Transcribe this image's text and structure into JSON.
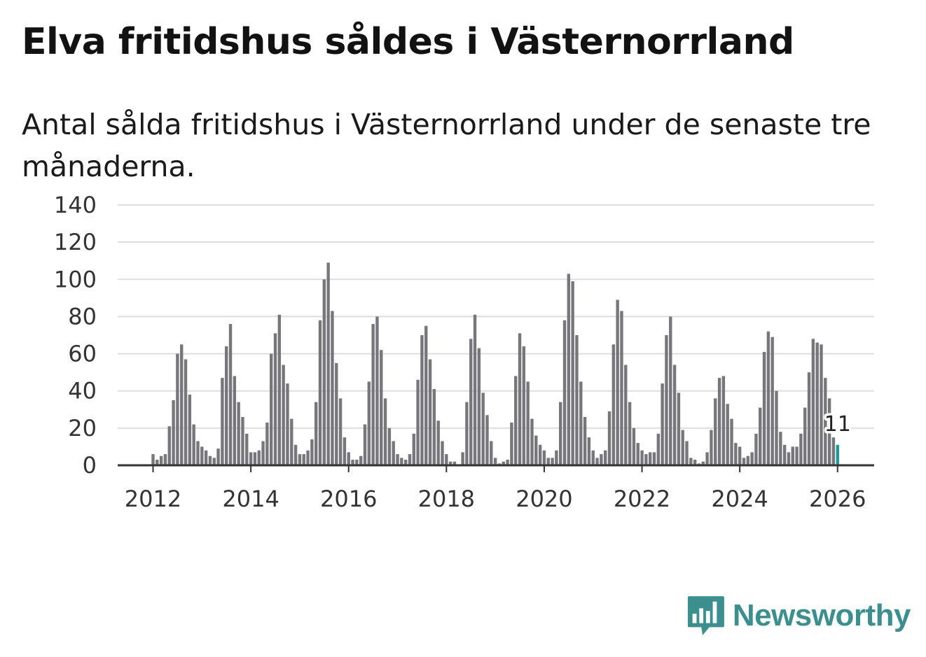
{
  "title": "Elva fritidshus såldes i Västernorrland",
  "subtitle": "Antal sålda fritidshus i Västernorrland under de senaste tre månaderna.",
  "brand": {
    "name": "Newsworthy",
    "color": "#3b8f8e"
  },
  "colors": {
    "bar": "#77767b",
    "highlight": "#1b9a98",
    "grid": "#dddddd",
    "axis": "#333333"
  },
  "chart_data": {
    "type": "bar",
    "title": "Elva fritidshus såldes i Västernorrland",
    "xlabel": "",
    "ylabel": "",
    "ylim": [
      0,
      140
    ],
    "yticks": [
      0,
      20,
      40,
      60,
      80,
      100,
      120,
      140
    ],
    "xticks": [
      "2012",
      "2014",
      "2016",
      "2018",
      "2020",
      "2022",
      "2024",
      "2026"
    ],
    "start": "2012-01",
    "grid": true,
    "series": [
      {
        "name": "Antal sålda fritidshus",
        "values": [
          6,
          3,
          5,
          6,
          21,
          35,
          60,
          65,
          57,
          38,
          22,
          13,
          10,
          8,
          5,
          4,
          9,
          47,
          64,
          76,
          48,
          34,
          26,
          17,
          7,
          7,
          8,
          13,
          23,
          60,
          71,
          81,
          54,
          44,
          25,
          11,
          6,
          6,
          8,
          14,
          34,
          78,
          100,
          109,
          83,
          55,
          36,
          15,
          7,
          3,
          3,
          5,
          22,
          45,
          76,
          80,
          62,
          36,
          20,
          13,
          6,
          4,
          3,
          6,
          17,
          46,
          70,
          75,
          57,
          41,
          24,
          13,
          6,
          2,
          2,
          0,
          7,
          34,
          68,
          81,
          63,
          39,
          27,
          13,
          4,
          1,
          2,
          3,
          23,
          48,
          71,
          64,
          45,
          25,
          16,
          11,
          8,
          4,
          4,
          8,
          34,
          78,
          103,
          99,
          70,
          45,
          26,
          15,
          8,
          4,
          6,
          8,
          29,
          65,
          89,
          83,
          54,
          34,
          20,
          12,
          8,
          6,
          7,
          7,
          17,
          44,
          70,
          80,
          54,
          39,
          19,
          13,
          4,
          3,
          1,
          2,
          7,
          19,
          36,
          47,
          48,
          33,
          25,
          12,
          10,
          4,
          5,
          7,
          17,
          31,
          61,
          72,
          69,
          40,
          18,
          11,
          7,
          10,
          10,
          17,
          31,
          50,
          68,
          66,
          65,
          47,
          36,
          15,
          11
        ]
      }
    ],
    "highlight_label": "11"
  }
}
